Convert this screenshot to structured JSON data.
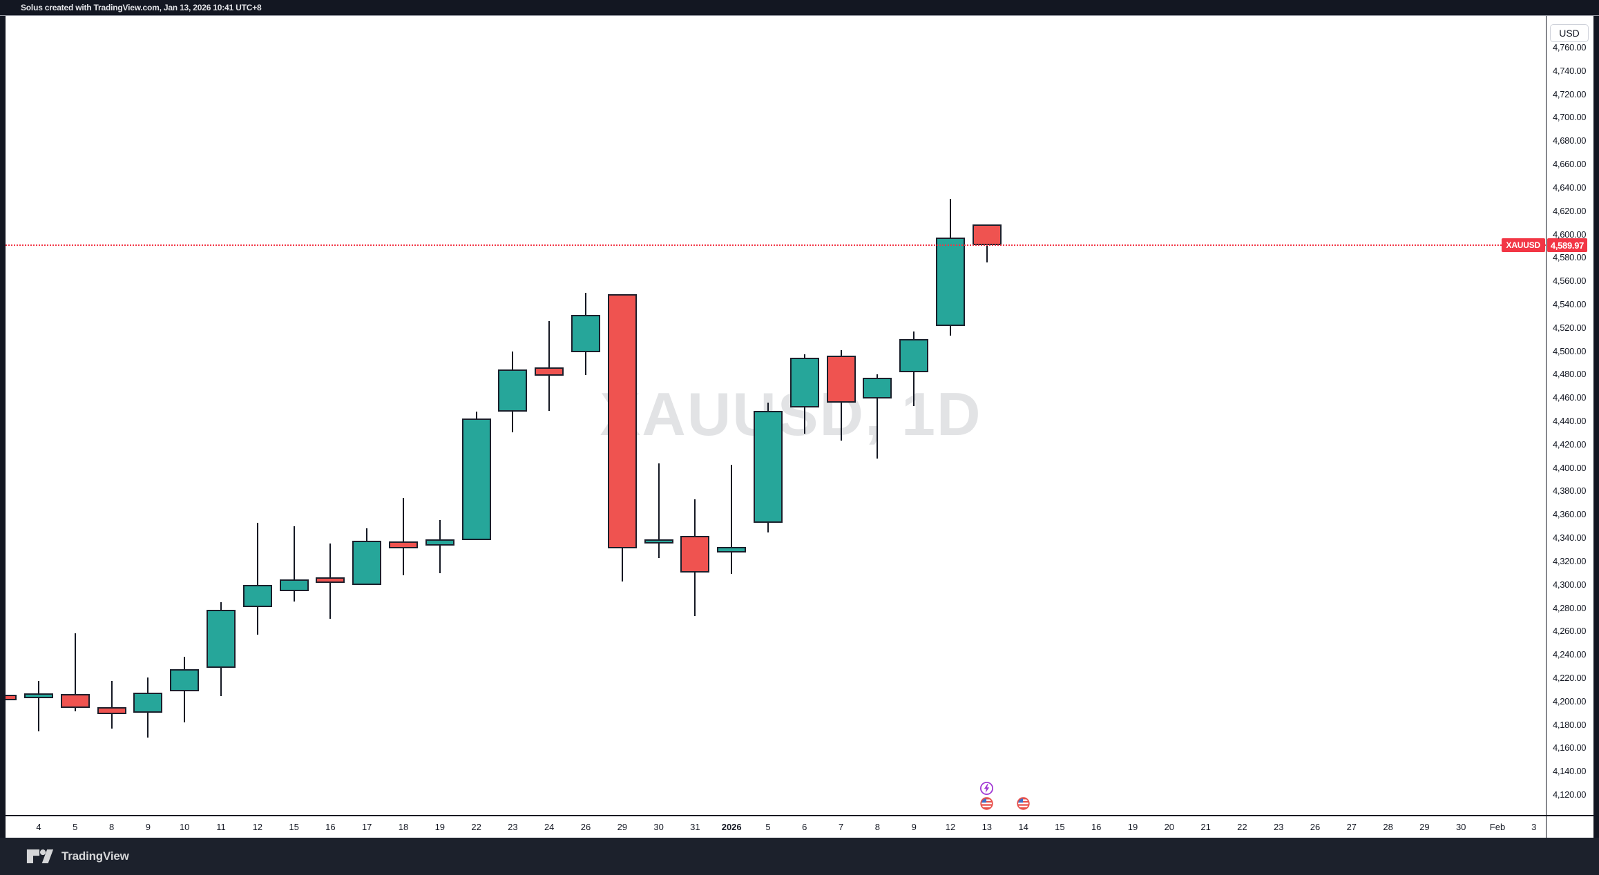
{
  "header": {
    "attribution": "Solus created with TradingView.com, Jan 13, 2026 10:41 UTC+8"
  },
  "footer": {
    "brand": "TradingView"
  },
  "watermark": "XAUUSD, 1D",
  "price_axis": {
    "currency_label": "USD",
    "last_price_label": "4,589.97"
  },
  "price_line": {
    "symbol_label": "XAUUSD",
    "price": 4589.97,
    "color": "#f23645"
  },
  "events": [
    {
      "slot": 26,
      "icons": [
        "lightning-icon",
        "us-flag-icon"
      ]
    },
    {
      "slot": 27,
      "icons": [
        "us-flag-icon"
      ]
    }
  ],
  "chart_data": {
    "type": "candlestick",
    "title": "XAUUSD, 1D",
    "symbol": "XAUUSD",
    "timeframe": "1D",
    "currency": "USD",
    "ylim": [
      4102,
      4787
    ],
    "grid": false,
    "up_color": "#26a69a",
    "down_color": "#ef5350",
    "wick_color": "#131722",
    "last_price": 4589.97,
    "y_ticks": [
      "4,760.00",
      "4,740.00",
      "4,720.00",
      "4,700.00",
      "4,680.00",
      "4,660.00",
      "4,640.00",
      "4,620.00",
      "4,600.00",
      "4,580.00",
      "4,560.00",
      "4,540.00",
      "4,520.00",
      "4,500.00",
      "4,480.00",
      "4,460.00",
      "4,440.00",
      "4,420.00",
      "4,400.00",
      "4,380.00",
      "4,360.00",
      "4,340.00",
      "4,320.00",
      "4,300.00",
      "4,280.00",
      "4,260.00",
      "4,240.00",
      "4,220.00",
      "4,200.00",
      "4,180.00",
      "4,160.00",
      "4,140.00",
      "4,120.00"
    ],
    "x_axis_labels": [
      {
        "text": "4",
        "bold": false
      },
      {
        "text": "5",
        "bold": false
      },
      {
        "text": "8",
        "bold": false
      },
      {
        "text": "9",
        "bold": false
      },
      {
        "text": "10",
        "bold": false
      },
      {
        "text": "11",
        "bold": false
      },
      {
        "text": "12",
        "bold": false
      },
      {
        "text": "15",
        "bold": false
      },
      {
        "text": "16",
        "bold": false
      },
      {
        "text": "17",
        "bold": false
      },
      {
        "text": "18",
        "bold": false
      },
      {
        "text": "19",
        "bold": false
      },
      {
        "text": "22",
        "bold": false
      },
      {
        "text": "23",
        "bold": false
      },
      {
        "text": "24",
        "bold": false
      },
      {
        "text": "26",
        "bold": false
      },
      {
        "text": "29",
        "bold": false
      },
      {
        "text": "30",
        "bold": false
      },
      {
        "text": "31",
        "bold": false
      },
      {
        "text": "2026",
        "bold": true
      },
      {
        "text": "5",
        "bold": false
      },
      {
        "text": "6",
        "bold": false
      },
      {
        "text": "7",
        "bold": false
      },
      {
        "text": "8",
        "bold": false
      },
      {
        "text": "9",
        "bold": false
      },
      {
        "text": "12",
        "bold": false
      },
      {
        "text": "13",
        "bold": false
      },
      {
        "text": "14",
        "bold": false
      },
      {
        "text": "15",
        "bold": false
      },
      {
        "text": "16",
        "bold": false
      },
      {
        "text": "19",
        "bold": false
      },
      {
        "text": "20",
        "bold": false
      },
      {
        "text": "21",
        "bold": false
      },
      {
        "text": "22",
        "bold": false
      },
      {
        "text": "23",
        "bold": false
      },
      {
        "text": "26",
        "bold": false
      },
      {
        "text": "27",
        "bold": false
      },
      {
        "text": "28",
        "bold": false
      },
      {
        "text": "29",
        "bold": false
      },
      {
        "text": "30",
        "bold": false
      },
      {
        "text": "Feb",
        "bold": false
      },
      {
        "text": "3",
        "bold": false
      }
    ],
    "candles": [
      {
        "slot": -1,
        "date": "Dec 3",
        "open": 4205,
        "high": 4205,
        "low": 4200.5,
        "close": 4200.5,
        "dir": "down"
      },
      {
        "slot": 0,
        "date": "Dec 4",
        "open": 4202,
        "high": 4217,
        "low": 4174,
        "close": 4206.5,
        "dir": "up"
      },
      {
        "slot": 1,
        "date": "Dec 5",
        "open": 4205.5,
        "high": 4258,
        "low": 4191,
        "close": 4194,
        "dir": "down"
      },
      {
        "slot": 2,
        "date": "Dec 8",
        "open": 4194.5,
        "high": 4217,
        "low": 4176,
        "close": 4188.5,
        "dir": "down"
      },
      {
        "slot": 3,
        "date": "Dec 9",
        "open": 4189.5,
        "high": 4220,
        "low": 4168.5,
        "close": 4207,
        "dir": "up"
      },
      {
        "slot": 4,
        "date": "Dec 10",
        "open": 4208,
        "high": 4237.5,
        "low": 4181.5,
        "close": 4227,
        "dir": "up"
      },
      {
        "slot": 5,
        "date": "Dec 11",
        "open": 4228.5,
        "high": 4284.5,
        "low": 4204,
        "close": 4278,
        "dir": "up"
      },
      {
        "slot": 6,
        "date": "Dec 12",
        "open": 4280.5,
        "high": 4352.5,
        "low": 4256.5,
        "close": 4299,
        "dir": "up"
      },
      {
        "slot": 7,
        "date": "Dec 15",
        "open": 4294,
        "high": 4349.5,
        "low": 4285,
        "close": 4304,
        "dir": "up"
      },
      {
        "slot": 8,
        "date": "Dec 16",
        "open": 4305.5,
        "high": 4334.5,
        "low": 4270.5,
        "close": 4301,
        "dir": "down"
      },
      {
        "slot": 9,
        "date": "Dec 17",
        "open": 4299.5,
        "high": 4348,
        "low": 4299.5,
        "close": 4337,
        "dir": "up"
      },
      {
        "slot": 10,
        "date": "Dec 18",
        "open": 4336.5,
        "high": 4374,
        "low": 4307.5,
        "close": 4330.5,
        "dir": "down"
      },
      {
        "slot": 11,
        "date": "Dec 19",
        "open": 4333,
        "high": 4355,
        "low": 4309,
        "close": 4338,
        "dir": "up"
      },
      {
        "slot": 12,
        "date": "Dec 22",
        "open": 4337.5,
        "high": 4447.5,
        "low": 4337.5,
        "close": 4442,
        "dir": "up"
      },
      {
        "slot": 13,
        "date": "Dec 23",
        "open": 4447.5,
        "high": 4499,
        "low": 4430,
        "close": 4484,
        "dir": "up"
      },
      {
        "slot": 14,
        "date": "Dec 24",
        "open": 4485.5,
        "high": 4525,
        "low": 4448,
        "close": 4478.5,
        "dir": "down"
      },
      {
        "slot": 15,
        "date": "Dec 26",
        "open": 4498.5,
        "high": 4549.5,
        "low": 4479,
        "close": 4530.5,
        "dir": "up"
      },
      {
        "slot": 16,
        "date": "Dec 29",
        "open": 4548.5,
        "high": 4548.5,
        "low": 4302,
        "close": 4330.5,
        "dir": "down"
      },
      {
        "slot": 17,
        "date": "Dec 30",
        "open": 4335,
        "high": 4403.5,
        "low": 4322.5,
        "close": 4338.5,
        "dir": "up"
      },
      {
        "slot": 18,
        "date": "Dec 31",
        "open": 4341,
        "high": 4372.5,
        "low": 4272.5,
        "close": 4310,
        "dir": "down"
      },
      {
        "slot": 19,
        "date": "Jan 2",
        "open": 4327,
        "high": 4402,
        "low": 4308.5,
        "close": 4332,
        "dir": "up"
      },
      {
        "slot": 20,
        "date": "Jan 5",
        "open": 4352.5,
        "high": 4455.5,
        "low": 4344,
        "close": 4448,
        "dir": "up"
      },
      {
        "slot": 21,
        "date": "Jan 6",
        "open": 4451,
        "high": 4497,
        "low": 4428.5,
        "close": 4494,
        "dir": "up"
      },
      {
        "slot": 22,
        "date": "Jan 7",
        "open": 4495.5,
        "high": 4500.5,
        "low": 4423,
        "close": 4455.5,
        "dir": "down"
      },
      {
        "slot": 23,
        "date": "Jan 8",
        "open": 4459,
        "high": 4479.5,
        "low": 4407.5,
        "close": 4476.5,
        "dir": "up"
      },
      {
        "slot": 24,
        "date": "Jan 9",
        "open": 4481.5,
        "high": 4516.5,
        "low": 4452.5,
        "close": 4510,
        "dir": "up"
      },
      {
        "slot": 25,
        "date": "Jan 12",
        "open": 4521,
        "high": 4630,
        "low": 4512.5,
        "close": 4597,
        "dir": "up"
      },
      {
        "slot": 26,
        "date": "Jan 13",
        "open": 4608,
        "high": 4608,
        "low": 4575.5,
        "close": 4589.97,
        "dir": "down"
      }
    ]
  }
}
